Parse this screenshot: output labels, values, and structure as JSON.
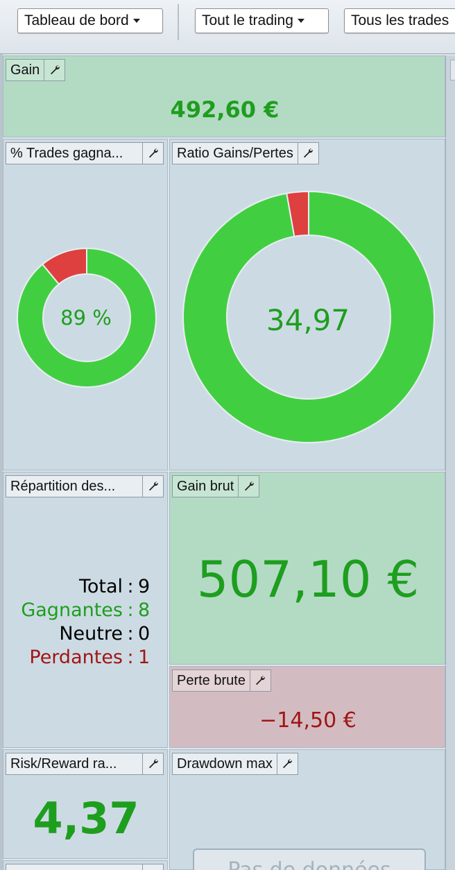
{
  "toolbar": {
    "dashboard_label": "Tableau de bord",
    "trading_label": "Tout le trading",
    "trades_label": "Tous les trades"
  },
  "gain": {
    "title": "Gain",
    "value": "492,60 €"
  },
  "win_rate": {
    "title": "% Trades gagna...",
    "value": "89 %",
    "percent": 89
  },
  "ratio": {
    "title": "Ratio Gains/Pertes",
    "value": "34,97",
    "percent_gain": 97.2
  },
  "repartition": {
    "title": "Répartition des...",
    "rows": [
      {
        "label": "Total",
        "sep": ":",
        "value": "9",
        "color": "#111111"
      },
      {
        "label": "Gagnantes",
        "sep": ":",
        "value": "8",
        "color": "#1e9e1e"
      },
      {
        "label": "Neutre",
        "sep": ":",
        "value": "0",
        "color": "#111111"
      },
      {
        "label": "Perdantes",
        "sep": ":",
        "value": "1",
        "color": "#a01515"
      }
    ]
  },
  "gross_gain": {
    "title": "Gain brut",
    "value": "507,10 €"
  },
  "gross_loss": {
    "title": "Perte brute",
    "value": "−14,50 €"
  },
  "risk_reward": {
    "title": "Risk/Reward ra...",
    "value": "4,37"
  },
  "drawdown": {
    "title": "Drawdown max",
    "nodata": "Pas de données"
  },
  "colors": {
    "positive": "#1e9e1e",
    "negative": "#a01515",
    "donut_green": "#41cf41",
    "donut_red": "#de3f3f"
  }
}
